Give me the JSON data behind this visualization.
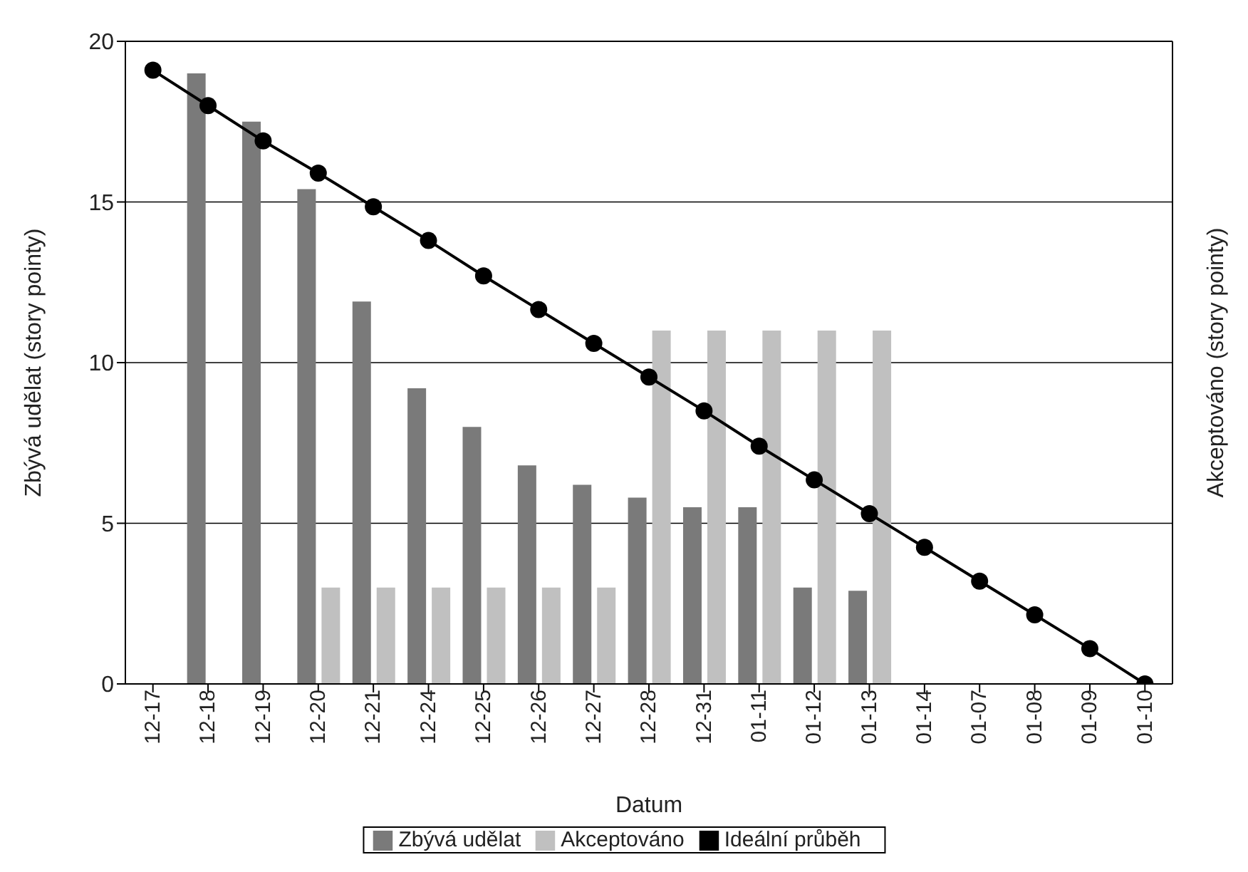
{
  "chart_data": {
    "type": "bar",
    "xlabel": "Datum",
    "ylabel": "Zbývá udělat (story pointy)",
    "y2label": "Akceptováno (story pointy)",
    "categories": [
      "12-17",
      "12-18",
      "12-19",
      "12-20",
      "12-21",
      "12-24",
      "12-25",
      "12-26",
      "12-27",
      "12-28",
      "12-31",
      "01-11",
      "01-12",
      "01-13",
      "01-14",
      "01-07",
      "01-08",
      "01-09",
      "01-10"
    ],
    "series": [
      {
        "name": "Zbývá udělat",
        "color": "#7a7a7a",
        "values": [
          null,
          19,
          17.5,
          15.4,
          11.9,
          9.2,
          8,
          6.8,
          6.2,
          5.8,
          5.5,
          5.5,
          3,
          2.9,
          null,
          null,
          null,
          null,
          null
        ]
      },
      {
        "name": "Akceptováno",
        "color": "#c0c0c0",
        "values": [
          null,
          null,
          null,
          3,
          3,
          3,
          3,
          3,
          3,
          11,
          11,
          11,
          11,
          11,
          null,
          null,
          null,
          null,
          null
        ]
      },
      {
        "name": "Ideální průběh",
        "type": "line",
        "color": "#000000",
        "values": [
          19.1,
          18,
          16.9,
          15.9,
          14.85,
          13.8,
          12.7,
          11.65,
          10.6,
          9.55,
          8.5,
          7.4,
          6.35,
          5.3,
          4.25,
          3.2,
          2.15,
          1.1,
          0
        ]
      }
    ],
    "ylim": [
      0,
      20
    ],
    "yticks": [
      0,
      5,
      10,
      15,
      20
    ],
    "grid": "y",
    "legend": "bottom",
    "marker": "circle",
    "line_style": "solid"
  }
}
